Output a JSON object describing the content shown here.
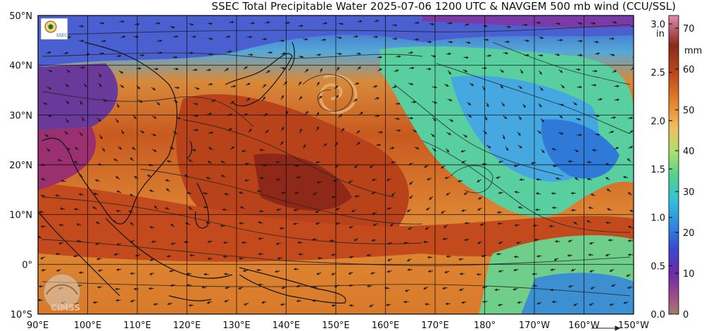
{
  "title": "SSEC Total Precipitable Water  2025-07-06 1200 UTC & NAVGEM 500 mb wind (CCU/SSL)",
  "map": {
    "lat_labels": [
      "50°N",
      "40°N",
      "30°N",
      "20°N",
      "10°N",
      "0°",
      "10°S"
    ],
    "lon_labels": [
      "90°E",
      "100°E",
      "110°E",
      "120°E",
      "130°E",
      "140°E",
      "150°E",
      "160°E",
      "170°E",
      "180°",
      "170°W",
      "160°W",
      "150°W"
    ],
    "watermark": "CIMSS",
    "logo_text": "SSEC",
    "colors": {
      "dry": "#5b2d8a",
      "low": "#3a6fd8",
      "mid": "#54c9a7",
      "green": "#7fd86a",
      "moist": "#f0a040",
      "wet": "#c8501c",
      "very_wet": "#8a2a1a",
      "coast": "#111111",
      "grid": "#000000"
    }
  },
  "colorbar": {
    "in_label": "in",
    "mm_label": "mm",
    "in_ticks": [
      "3.0",
      "2.5",
      "2.0",
      "1.5",
      "1.0",
      "0.5",
      "0.0"
    ],
    "mm_ticks": [
      "70",
      "60",
      "50",
      "40",
      "30",
      "20",
      "10",
      "0"
    ]
  }
}
